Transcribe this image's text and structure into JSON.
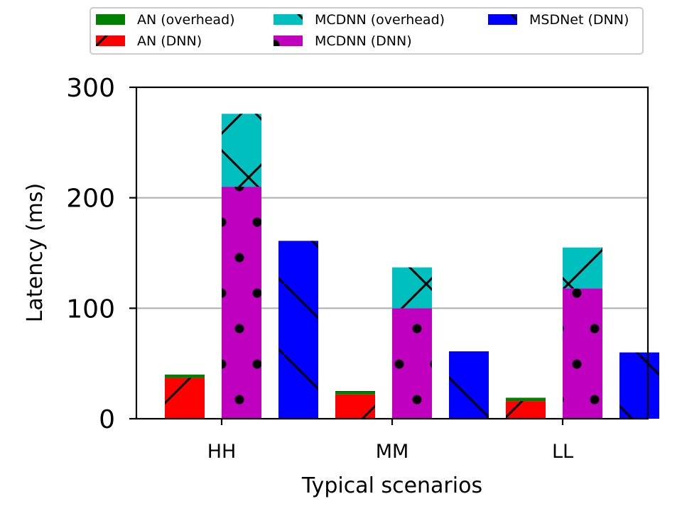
{
  "chart_data": {
    "type": "bar",
    "stacked": true,
    "categories": [
      "HH",
      "MM",
      "LL"
    ],
    "xlabel": "Typical scenarios",
    "ylabel": "Latency (ms)",
    "ylim": [
      0,
      300
    ],
    "yticks": [
      0,
      100,
      200,
      300
    ],
    "grid": "y",
    "legend_position": "top",
    "series": [
      {
        "name": "AN (DNN)",
        "color": "#ff0000",
        "hatch": "/",
        "group": "AN",
        "values": [
          37,
          22,
          16
        ]
      },
      {
        "name": "AN (overhead)",
        "color": "#008000",
        "hatch": "-",
        "group": "AN",
        "values": [
          3,
          3,
          3
        ]
      },
      {
        "name": "MCDNN (DNN)",
        "color": "#bf00bf",
        "hatch": ".",
        "group": "MCDNN",
        "values": [
          210,
          100,
          118
        ]
      },
      {
        "name": "MCDNN (overhead)",
        "color": "#00bfbf",
        "hatch": "x",
        "group": "MCDNN",
        "values": [
          66,
          37,
          37
        ]
      },
      {
        "name": "MSDNet (DNN)",
        "color": "#0000ff",
        "hatch": "\\",
        "group": "MSDNet",
        "values": [
          161,
          61,
          60
        ]
      }
    ],
    "legend_order": [
      "AN (overhead)",
      "AN (DNN)",
      "MCDNN (overhead)",
      "MCDNN (DNN)",
      "MSDNet (DNN)"
    ]
  }
}
